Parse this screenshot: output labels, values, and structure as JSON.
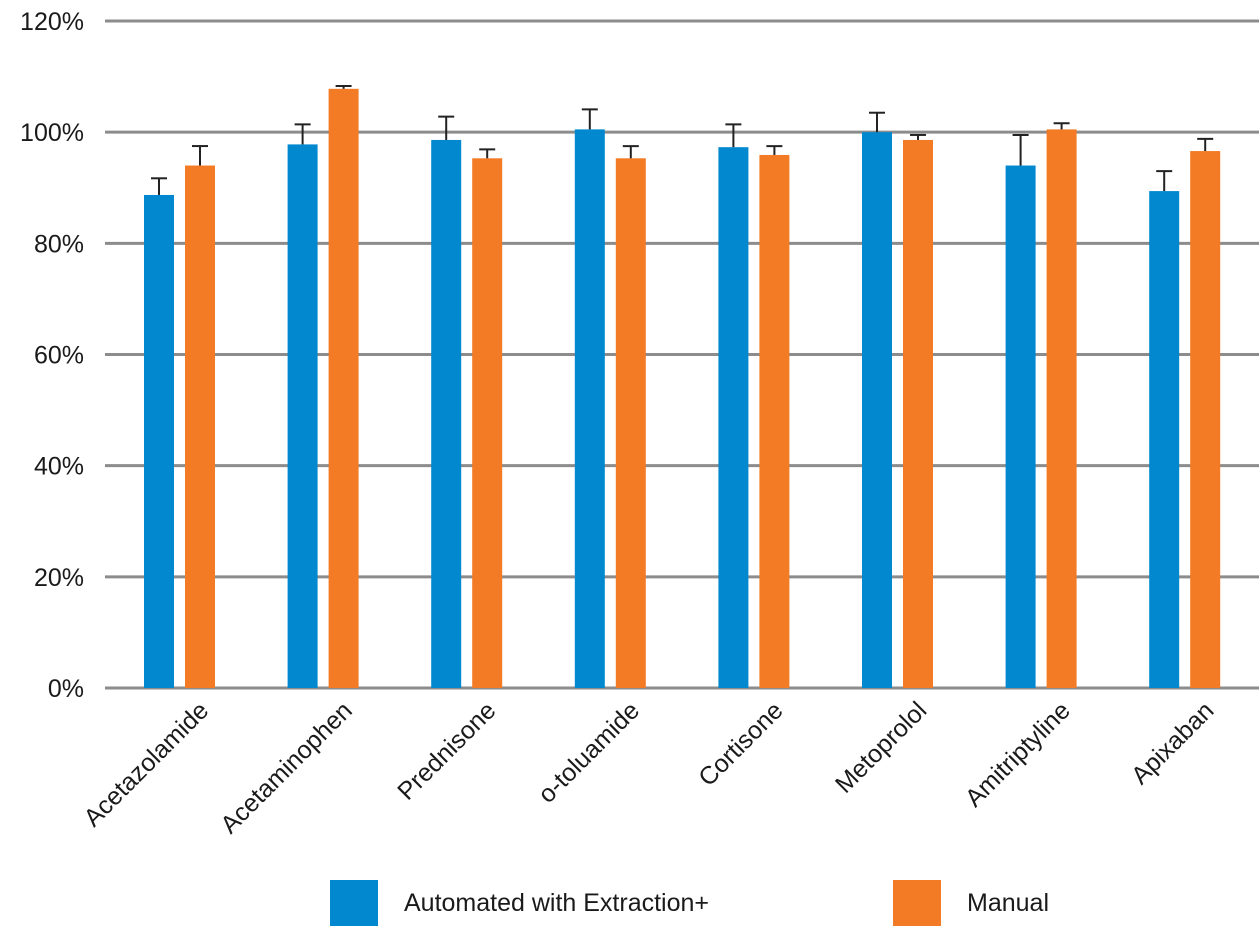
{
  "chart_data": {
    "type": "bar",
    "title": "",
    "xlabel": "",
    "ylabel": "",
    "ylim": [
      0,
      120
    ],
    "yticks": [
      0,
      20,
      40,
      60,
      80,
      100,
      120
    ],
    "ytick_labels": [
      "0%",
      "20%",
      "40%",
      "60%",
      "80%",
      "100%",
      "120%"
    ],
    "grid": true,
    "legend_position": "bottom",
    "categories": [
      "Acetazolamide",
      "Acetaminophen",
      "Prednisone",
      "o-toluamide",
      "Cortisone",
      "Metoprolol",
      "Amitriptyline",
      "Apixaban"
    ],
    "series": [
      {
        "name": "Automated with Extraction+",
        "color": "#0288cf",
        "values": [
          88.7,
          97.8,
          98.6,
          100.5,
          97.3,
          100.0,
          94.0,
          89.4
        ],
        "errors": [
          3.0,
          3.6,
          4.2,
          3.6,
          4.1,
          3.5,
          5.5,
          3.6
        ]
      },
      {
        "name": "Manual",
        "color": "#f47b25",
        "values": [
          94.0,
          107.8,
          95.3,
          95.3,
          95.9,
          98.6,
          100.5,
          96.6
        ],
        "errors": [
          3.5,
          0.5,
          1.6,
          2.2,
          1.6,
          0.9,
          1.1,
          2.2
        ]
      }
    ]
  }
}
